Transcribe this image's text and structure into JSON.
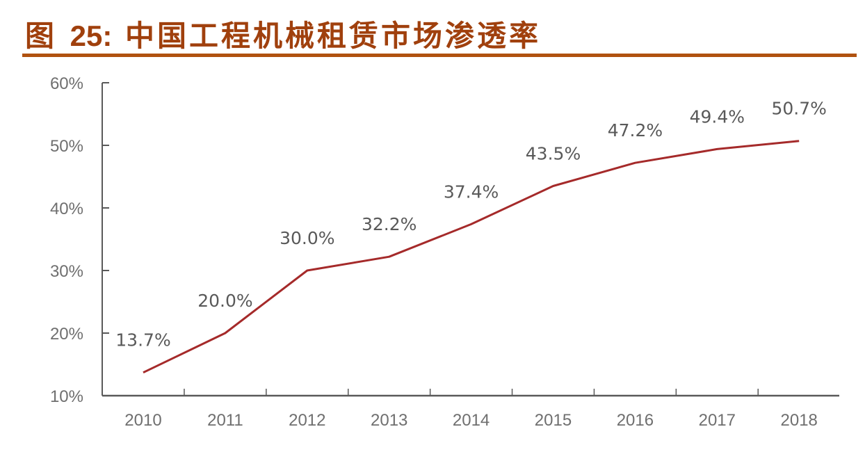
{
  "header": {
    "figure_label": "图",
    "figure_number": "25:",
    "title": "中国工程机械租赁市场渗透率"
  },
  "colors": {
    "title": "#a0400d",
    "rule": "#b0520f",
    "line": "#a52a2a",
    "axis": "#595959",
    "text": "#6f6f6f"
  },
  "chart_data": {
    "type": "line",
    "title": "中国工程机械租赁市场渗透率",
    "xlabel": "",
    "ylabel": "",
    "categories": [
      "2010",
      "2011",
      "2012",
      "2013",
      "2014",
      "2015",
      "2016",
      "2017",
      "2018"
    ],
    "series": [
      {
        "name": "中国工程机械租赁市场渗透率",
        "values": [
          13.7,
          20.0,
          30.0,
          32.2,
          37.4,
          43.5,
          47.2,
          49.4,
          50.7
        ],
        "labels": [
          "13.7%",
          "20.0%",
          "30.0%",
          "32.2%",
          "37.4%",
          "43.5%",
          "47.2%",
          "49.4%",
          "50.7%"
        ]
      }
    ],
    "ylim": [
      10,
      60
    ],
    "yticks": [
      "10%",
      "20%",
      "30%",
      "40%",
      "50%",
      "60%"
    ],
    "grid": false,
    "legend": "none"
  }
}
